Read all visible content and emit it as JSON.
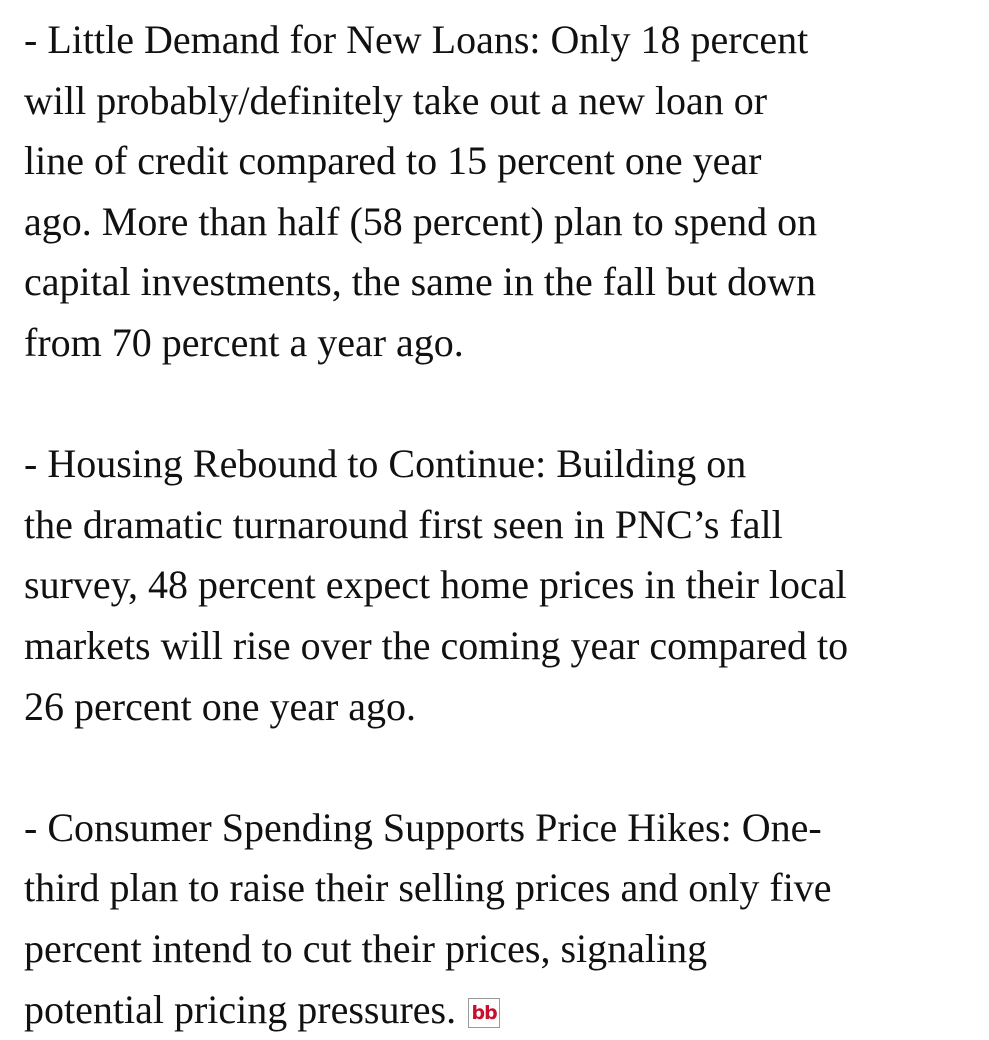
{
  "paragraphs": [
    {
      "lines": [
        "- Little Demand for New Loans: Only 18 percent",
        "will probably/definitely take out a new loan or",
        "line of credit compared to 15 percent one year",
        "ago. More than half (58 percent) plan to spend on",
        "capital investments, the same in the fall but down",
        "from 70 percent a year ago."
      ]
    },
    {
      "lines": [
        "- Housing Rebound to Continue: Building on",
        "the dramatic turnaround first seen in PNC’s fall",
        "survey, 48 percent expect home prices in their local",
        "markets will rise over the coming year compared to",
        "26 percent one year ago."
      ]
    },
    {
      "lines": [
        "- Consumer Spending Supports Price Hikes: One-",
        "third plan to raise their selling prices and only five",
        "percent intend to cut their prices, signaling",
        "potential pricing pressures."
      ]
    }
  ],
  "icon": "bb"
}
